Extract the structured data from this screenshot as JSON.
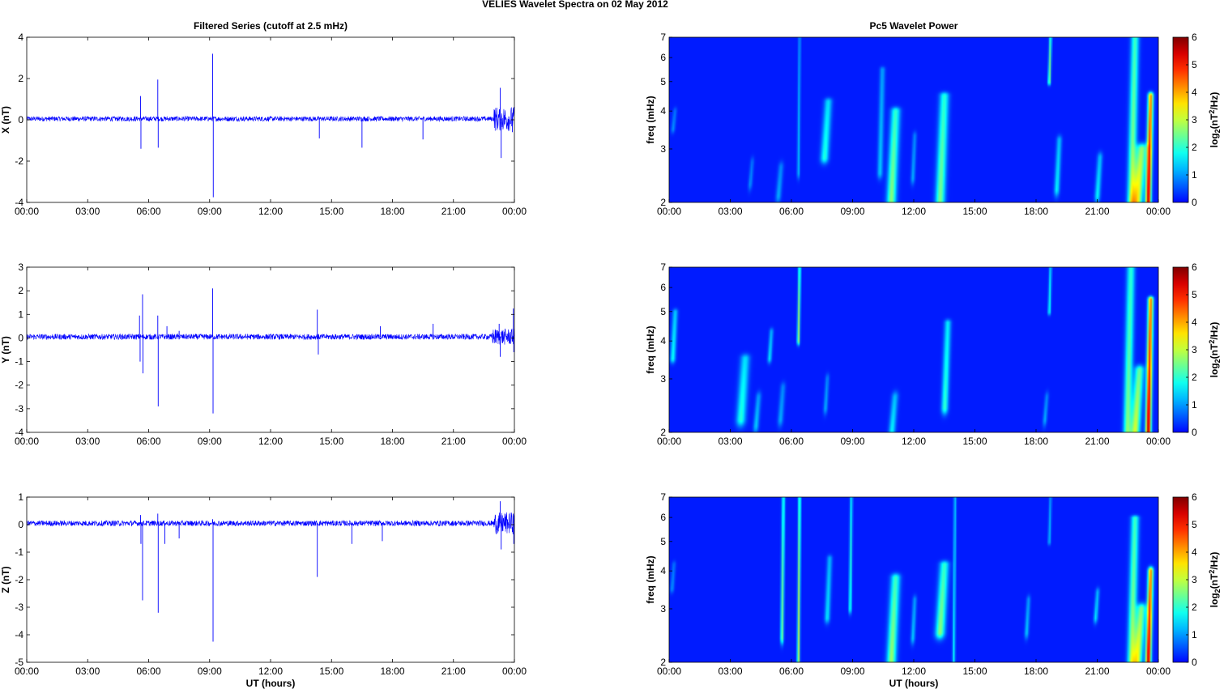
{
  "figure": {
    "suptitle": "VELIES Wavelet Spectra on 02 May      2012"
  },
  "chart_data": [
    {
      "type": "line",
      "title": "Filtered Series (cutoff at 2.5 mHz)",
      "xlabel": "",
      "ylabel": "X (nT)",
      "x_ticks": [
        "00:00",
        "03:00",
        "06:00",
        "09:00",
        "12:00",
        "15:00",
        "18:00",
        "21:00",
        "00:00"
      ],
      "xlim_hours": [
        0,
        24
      ],
      "ylim": [
        -4,
        4
      ],
      "y_ticks": [
        -4,
        -2,
        0,
        2,
        4
      ],
      "baseline": 0.05,
      "noise_amp": 0.12,
      "color": "#0000ff",
      "spikes": [
        {
          "t": 5.6,
          "v": 1.15
        },
        {
          "t": 5.62,
          "v": -1.4
        },
        {
          "t": 6.45,
          "v": 1.95
        },
        {
          "t": 6.47,
          "v": -1.35
        },
        {
          "t": 9.15,
          "v": 3.2
        },
        {
          "t": 9.18,
          "v": -3.75
        },
        {
          "t": 14.4,
          "v": -0.9
        },
        {
          "t": 16.5,
          "v": -1.35
        },
        {
          "t": 19.5,
          "v": -0.95
        },
        {
          "t": 23.3,
          "v": 1.55
        },
        {
          "t": 23.35,
          "v": -1.85
        },
        {
          "t": 23.9,
          "v": -0.6
        }
      ],
      "burst": {
        "start": 23.0,
        "end": 24.0,
        "amp": 0.6
      }
    },
    {
      "type": "heatmap",
      "title": "Pc5 Wavelet Power",
      "xlabel": "",
      "ylabel": "freq (mHz)",
      "x_ticks": [
        "00:00",
        "03:00",
        "06:00",
        "09:00",
        "12:00",
        "15:00",
        "18:00",
        "21:00",
        "00:00"
      ],
      "xlim_hours": [
        0,
        24
      ],
      "ylim_mhz": [
        2,
        7
      ],
      "y_scale": "log",
      "y_ticks": [
        2,
        3,
        4,
        5,
        6,
        7
      ],
      "colorbar": {
        "label": "log2(nT^2/Hz)",
        "ticks": [
          0,
          1,
          2,
          3,
          4,
          5,
          6
        ],
        "range": [
          0,
          6
        ],
        "colormap": "jet"
      },
      "features": [
        {
          "t": 0.2,
          "f0": 4,
          "f1": 3.5,
          "w": 0.15,
          "p": 0.8
        },
        {
          "t": 4.0,
          "f0": 2.7,
          "f1": 2.3,
          "w": 0.15,
          "p": 0.8
        },
        {
          "t": 5.4,
          "f0": 2.6,
          "f1": 2.1,
          "w": 0.2,
          "p": 1.0
        },
        {
          "t": 6.35,
          "f0": 7.0,
          "f1": 2.5,
          "w": 0.1,
          "p": 1.2
        },
        {
          "t": 7.7,
          "f0": 4.3,
          "f1": 2.8,
          "w": 0.3,
          "p": 1.8
        },
        {
          "t": 10.4,
          "f0": 5.5,
          "f1": 2.5,
          "w": 0.2,
          "p": 1.2
        },
        {
          "t": 11.0,
          "f0": 4.0,
          "f1": 2.0,
          "w": 0.35,
          "p": 2.5
        },
        {
          "t": 13.4,
          "f0": 4.5,
          "f1": 2.0,
          "w": 0.35,
          "p": 2.4
        },
        {
          "t": 12.0,
          "f0": 3.3,
          "f1": 2.4,
          "w": 0.15,
          "p": 1.0
        },
        {
          "t": 18.7,
          "f0": 7.0,
          "f1": 5.0,
          "w": 0.1,
          "p": 2.6
        },
        {
          "t": 19.1,
          "f0": 3.2,
          "f1": 2.2,
          "w": 0.2,
          "p": 1.5
        },
        {
          "t": 21.1,
          "f0": 2.8,
          "f1": 2.1,
          "w": 0.2,
          "p": 1.5
        },
        {
          "t": 22.8,
          "f0": 7.0,
          "f1": 2.0,
          "w": 0.3,
          "p": 2.6
        },
        {
          "t": 23.1,
          "f0": 3.0,
          "f1": 2.0,
          "w": 0.4,
          "p": 3.4
        },
        {
          "t": 23.6,
          "f0": 4.5,
          "f1": 2.0,
          "w": 0.2,
          "p": 5.5
        }
      ]
    },
    {
      "type": "line",
      "title": "",
      "xlabel": "",
      "ylabel": "Y (nT)",
      "x_ticks": [
        "00:00",
        "03:00",
        "06:00",
        "09:00",
        "12:00",
        "15:00",
        "18:00",
        "21:00",
        "00:00"
      ],
      "xlim_hours": [
        0,
        24
      ],
      "ylim": [
        -4,
        3
      ],
      "y_ticks": [
        -4,
        -3,
        -2,
        -1,
        0,
        1,
        2,
        3
      ],
      "baseline": 0.05,
      "noise_amp": 0.12,
      "color": "#0000ff",
      "spikes": [
        {
          "t": 5.55,
          "v": 0.95
        },
        {
          "t": 5.58,
          "v": -1.0
        },
        {
          "t": 5.7,
          "v": 1.85
        },
        {
          "t": 5.72,
          "v": -1.5
        },
        {
          "t": 6.45,
          "v": 0.95
        },
        {
          "t": 6.47,
          "v": -2.9
        },
        {
          "t": 6.9,
          "v": 0.5
        },
        {
          "t": 7.5,
          "v": 0.3
        },
        {
          "t": 9.15,
          "v": 2.1
        },
        {
          "t": 9.17,
          "v": -3.2
        },
        {
          "t": 14.3,
          "v": 1.2
        },
        {
          "t": 14.35,
          "v": -0.7
        },
        {
          "t": 17.4,
          "v": 0.5
        },
        {
          "t": 20.0,
          "v": 0.6
        },
        {
          "t": 23.25,
          "v": 0.6
        },
        {
          "t": 23.3,
          "v": -0.8
        },
        {
          "t": 23.95,
          "v": 1.25
        },
        {
          "t": 23.97,
          "v": -0.6
        }
      ],
      "burst": {
        "start": 22.9,
        "end": 24.0,
        "amp": 0.35
      }
    },
    {
      "type": "heatmap",
      "title": "",
      "xlabel": "",
      "ylabel": "freq (mHz)",
      "x_ticks": [
        "00:00",
        "03:00",
        "06:00",
        "09:00",
        "12:00",
        "15:00",
        "18:00",
        "21:00",
        "00:00"
      ],
      "xlim_hours": [
        0,
        24
      ],
      "ylim_mhz": [
        2,
        7
      ],
      "y_scale": "log",
      "y_ticks": [
        2,
        3,
        4,
        5,
        6,
        7
      ],
      "colorbar": {
        "label": "log2(nT^2/Hz)",
        "ticks": [
          0,
          1,
          2,
          3,
          4,
          5,
          6
        ],
        "range": [
          0,
          6
        ],
        "colormap": "jet"
      },
      "features": [
        {
          "t": 0.2,
          "f0": 5.0,
          "f1": 3.5,
          "w": 0.2,
          "p": 1.6
        },
        {
          "t": 3.6,
          "f0": 3.5,
          "f1": 2.2,
          "w": 0.35,
          "p": 1.8
        },
        {
          "t": 4.3,
          "f0": 2.6,
          "f1": 2.1,
          "w": 0.2,
          "p": 1.2
        },
        {
          "t": 4.95,
          "f0": 4.3,
          "f1": 3.5,
          "w": 0.15,
          "p": 1.4
        },
        {
          "t": 5.5,
          "f0": 2.8,
          "f1": 2.2,
          "w": 0.2,
          "p": 1.0
        },
        {
          "t": 6.35,
          "f0": 7.0,
          "f1": 4.0,
          "w": 0.1,
          "p": 2.8
        },
        {
          "t": 7.7,
          "f0": 3.0,
          "f1": 2.4,
          "w": 0.15,
          "p": 1.0
        },
        {
          "t": 11.0,
          "f0": 2.6,
          "f1": 2.0,
          "w": 0.25,
          "p": 1.5
        },
        {
          "t": 13.6,
          "f0": 4.6,
          "f1": 2.4,
          "w": 0.25,
          "p": 1.9
        },
        {
          "t": 18.5,
          "f0": 2.6,
          "f1": 2.2,
          "w": 0.15,
          "p": 1.0
        },
        {
          "t": 18.7,
          "f0": 7.0,
          "f1": 5.0,
          "w": 0.1,
          "p": 1.8
        },
        {
          "t": 22.6,
          "f0": 7.0,
          "f1": 2.0,
          "w": 0.3,
          "p": 2.4
        },
        {
          "t": 23.0,
          "f0": 3.2,
          "f1": 2.0,
          "w": 0.35,
          "p": 3.0
        },
        {
          "t": 23.6,
          "f0": 5.5,
          "f1": 2.0,
          "w": 0.2,
          "p": 5.6
        }
      ]
    },
    {
      "type": "line",
      "title": "",
      "xlabel": "UT (hours)",
      "ylabel": "Z (nT)",
      "x_ticks": [
        "00:00",
        "03:00",
        "06:00",
        "09:00",
        "12:00",
        "15:00",
        "18:00",
        "21:00",
        "00:00"
      ],
      "xlim_hours": [
        0,
        24
      ],
      "ylim": [
        -5,
        1
      ],
      "y_ticks": [
        -5,
        -4,
        -3,
        -2,
        -1,
        0,
        1
      ],
      "baseline": 0.05,
      "noise_amp": 0.1,
      "color": "#0000ff",
      "spikes": [
        {
          "t": 5.6,
          "v": 0.35
        },
        {
          "t": 5.62,
          "v": -0.7
        },
        {
          "t": 5.7,
          "v": -2.75
        },
        {
          "t": 6.45,
          "v": 0.4
        },
        {
          "t": 6.47,
          "v": -3.2
        },
        {
          "t": 6.8,
          "v": -0.7
        },
        {
          "t": 7.5,
          "v": -0.5
        },
        {
          "t": 9.15,
          "v": 0.2
        },
        {
          "t": 9.17,
          "v": -4.25
        },
        {
          "t": 14.3,
          "v": -1.9
        },
        {
          "t": 16.0,
          "v": -0.7
        },
        {
          "t": 17.5,
          "v": -0.6
        },
        {
          "t": 23.3,
          "v": 0.85
        },
        {
          "t": 23.35,
          "v": -0.9
        },
        {
          "t": 23.95,
          "v": 0.4
        },
        {
          "t": 23.97,
          "v": -0.7
        }
      ],
      "burst": {
        "start": 23.0,
        "end": 24.0,
        "amp": 0.4
      }
    },
    {
      "type": "heatmap",
      "title": "",
      "xlabel": "UT (hours)",
      "ylabel": "freq (mHz)",
      "x_ticks": [
        "00:00",
        "03:00",
        "06:00",
        "09:00",
        "12:00",
        "15:00",
        "18:00",
        "21:00",
        "00:00"
      ],
      "xlim_hours": [
        0,
        24
      ],
      "ylim_mhz": [
        2,
        7
      ],
      "y_scale": "log",
      "y_ticks": [
        2,
        3,
        4,
        5,
        6,
        7
      ],
      "colorbar": {
        "label": "log2(nT^2/Hz)",
        "ticks": [
          0,
          1,
          2,
          3,
          4,
          5,
          6
        ],
        "range": [
          0,
          6
        ],
        "colormap": "jet"
      },
      "features": [
        {
          "t": 0.15,
          "f0": 4.2,
          "f1": 3.5,
          "w": 0.15,
          "p": 0.8
        },
        {
          "t": 5.55,
          "f0": 7.0,
          "f1": 2.4,
          "w": 0.12,
          "p": 2.4
        },
        {
          "t": 6.35,
          "f0": 7.0,
          "f1": 2.0,
          "w": 0.1,
          "p": 3.0
        },
        {
          "t": 7.8,
          "f0": 4.4,
          "f1": 2.8,
          "w": 0.2,
          "p": 1.4
        },
        {
          "t": 8.9,
          "f0": 7.0,
          "f1": 3.0,
          "w": 0.1,
          "p": 2.0
        },
        {
          "t": 11.0,
          "f0": 3.8,
          "f1": 2.0,
          "w": 0.35,
          "p": 2.6
        },
        {
          "t": 12.0,
          "f0": 3.2,
          "f1": 2.4,
          "w": 0.15,
          "p": 1.2
        },
        {
          "t": 13.4,
          "f0": 4.2,
          "f1": 2.5,
          "w": 0.35,
          "p": 2.5
        },
        {
          "t": 14.0,
          "f0": 7.0,
          "f1": 2.0,
          "w": 0.1,
          "p": 1.6
        },
        {
          "t": 17.6,
          "f0": 3.2,
          "f1": 2.5,
          "w": 0.15,
          "p": 1.2
        },
        {
          "t": 18.7,
          "f0": 7.0,
          "f1": 5.0,
          "w": 0.1,
          "p": 1.2
        },
        {
          "t": 21.0,
          "f0": 3.4,
          "f1": 2.8,
          "w": 0.15,
          "p": 1.4
        },
        {
          "t": 22.8,
          "f0": 6.0,
          "f1": 2.0,
          "w": 0.3,
          "p": 2.6
        },
        {
          "t": 23.1,
          "f0": 3.0,
          "f1": 2.0,
          "w": 0.35,
          "p": 3.2
        },
        {
          "t": 23.6,
          "f0": 4.0,
          "f1": 2.0,
          "w": 0.2,
          "p": 5.5
        }
      ]
    }
  ]
}
